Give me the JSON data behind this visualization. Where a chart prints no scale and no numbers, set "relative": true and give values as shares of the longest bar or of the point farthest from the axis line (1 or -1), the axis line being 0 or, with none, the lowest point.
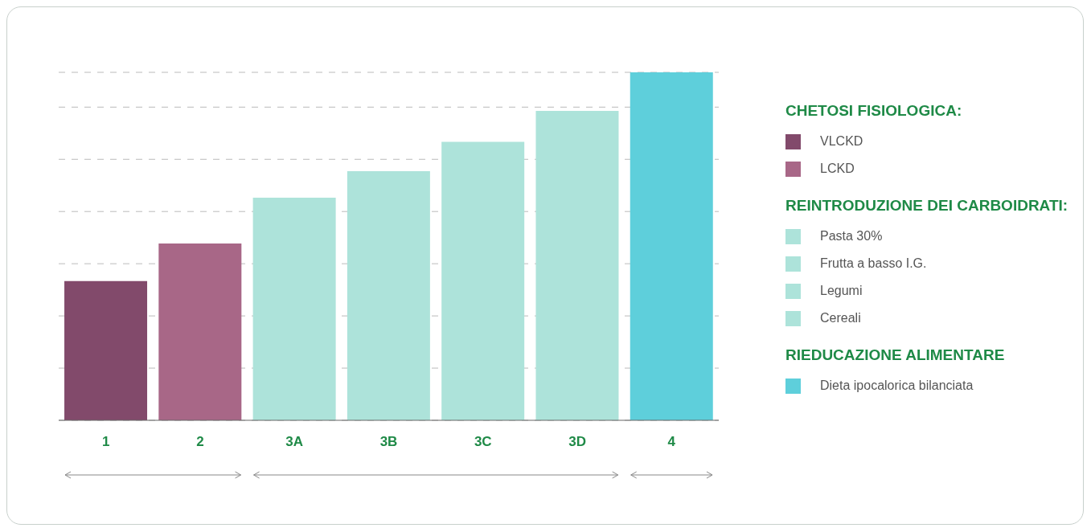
{
  "chart_data": {
    "type": "bar",
    "relative": true,
    "stacked": true,
    "categories": [
      "1",
      "2",
      "3A",
      "3B",
      "3C",
      "3D",
      "4"
    ],
    "series": [
      {
        "name": "VLCKD",
        "color": "#824a6b",
        "values": [
          0.4,
          null,
          null,
          null,
          null,
          null,
          null
        ]
      },
      {
        "name": "LCKD",
        "color": "#a86787",
        "values": [
          null,
          0.508,
          null,
          null,
          null,
          null,
          null
        ]
      },
      {
        "name": "Pasta 30%",
        "color": "#ade3da",
        "values": [
          null,
          null,
          0.64,
          null,
          null,
          null,
          null
        ]
      },
      {
        "name": "Frutta a basso I.G.",
        "color": "#ade3da",
        "values": [
          null,
          null,
          null,
          0.716,
          null,
          null,
          null
        ]
      },
      {
        "name": "Legumi",
        "color": "#ade3da",
        "values": [
          null,
          null,
          null,
          null,
          0.8,
          null,
          null
        ]
      },
      {
        "name": "Cereali",
        "color": "#ade3da",
        "values": [
          null,
          null,
          null,
          null,
          null,
          0.889,
          null
        ]
      },
      {
        "name": "Dieta ipocalorica bilanciata",
        "color": "#5ecfdb",
        "values": [
          null,
          null,
          null,
          null,
          null,
          null,
          1
        ]
      }
    ],
    "annotations": [
      "CHETOSI FISIOLOGICA:",
      "REINTRODUZIONE DEI CARBOIDRATI:",
      "RIEDUCAZIONE ALIMENTARE"
    ],
    "grid": "y",
    "legend": "right"
  }
}
